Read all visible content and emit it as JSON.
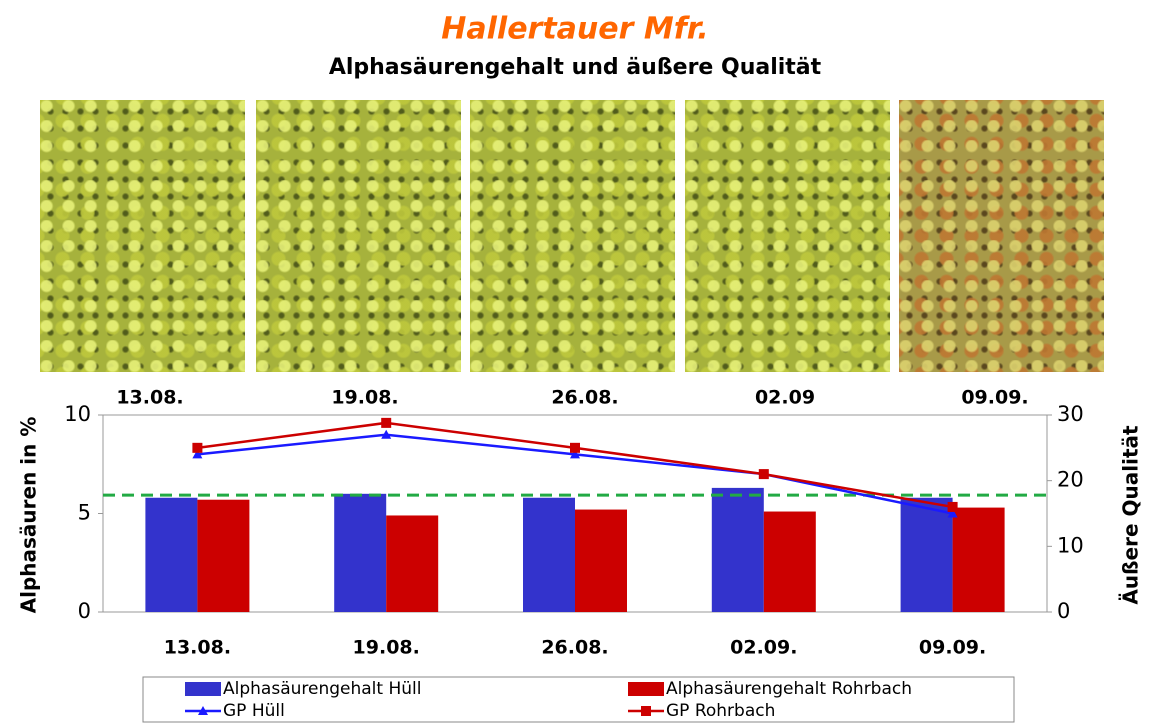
{
  "photo_captions": [
    "13.08.",
    "19.08.",
    "26.08.",
    "02.09",
    "09.09."
  ],
  "chart_data": {
    "type": "bar-line",
    "title": "Hallertauer Mfr.",
    "subtitle": "Alphasäurengehalt und äußere Qualität",
    "y_label": "Alphasäuren in %",
    "y2_label": "Äußere Qualität",
    "categories": [
      "13.08.",
      "19.08.",
      "26.08.",
      "02.09.",
      "09.09."
    ],
    "ylim": [
      0,
      10
    ],
    "yticks": [
      0,
      5,
      10
    ],
    "y2lim": [
      0,
      30
    ],
    "y2ticks": [
      0,
      10,
      20,
      30
    ],
    "series": [
      {
        "name": "Alphasäurengehalt Hüll",
        "kind": "bar",
        "color": "#3333cc",
        "values": [
          5.8,
          6.0,
          5.8,
          6.3,
          5.8
        ]
      },
      {
        "name": "Alphasäurengehalt Rohrbach",
        "kind": "bar",
        "color": "#cc0000",
        "values": [
          5.7,
          4.9,
          5.2,
          5.1,
          5.3
        ]
      },
      {
        "name": "GP Hüll",
        "kind": "line",
        "axis": "y2",
        "marker": "triangle",
        "color": "#1a1aff",
        "values": [
          24,
          27,
          24,
          21,
          15
        ]
      },
      {
        "name": "GP Rohrbach",
        "kind": "line",
        "axis": "y2",
        "marker": "square",
        "color": "#cc0000",
        "values": [
          25,
          28.8,
          25,
          21,
          16
        ]
      }
    ],
    "reference_line": {
      "axis": "y2",
      "value": 17.8,
      "color": "#22aa44"
    }
  }
}
